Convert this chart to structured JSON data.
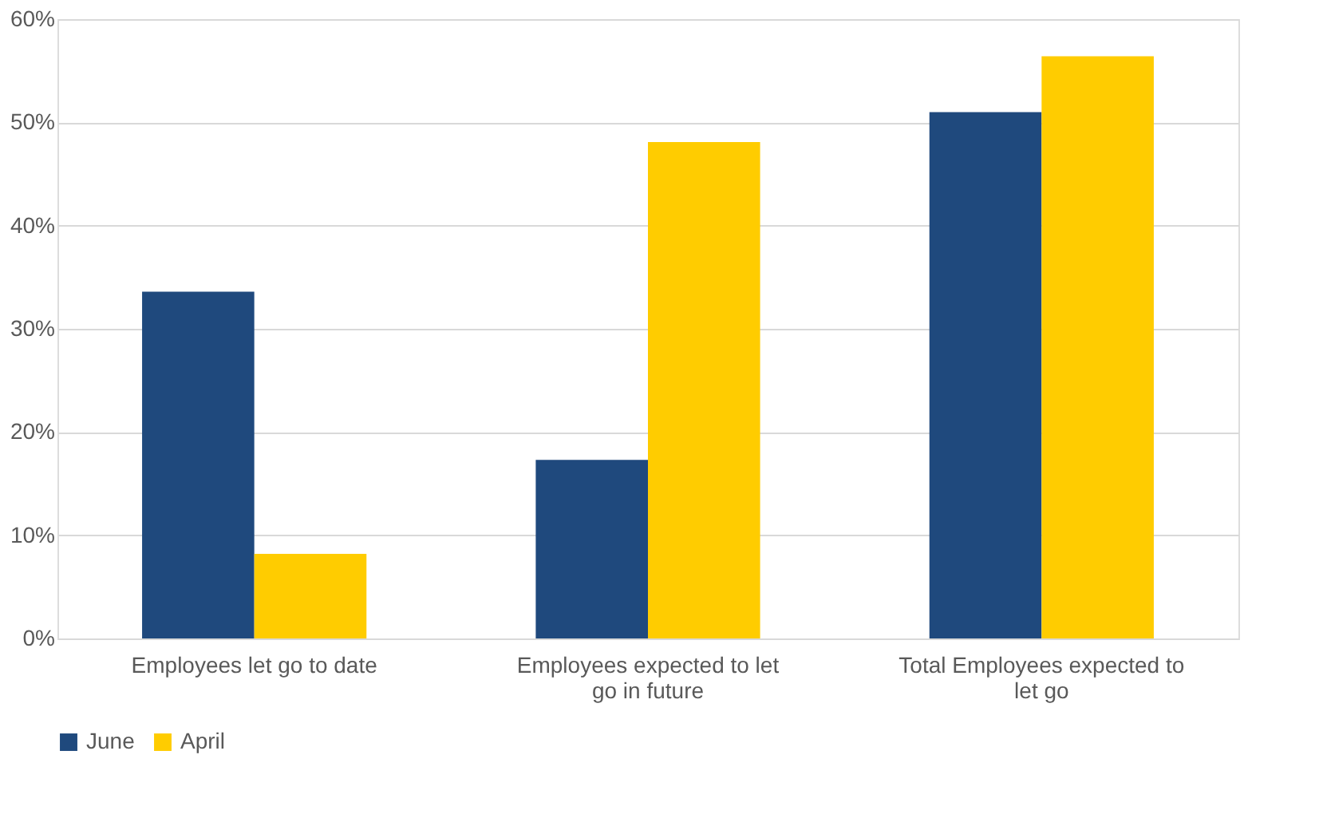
{
  "chart_data": {
    "type": "bar",
    "categories": [
      "Employees let go to date",
      "Employees expected to let go in future",
      "Total Employees expected to let go"
    ],
    "series": [
      {
        "name": "June",
        "color": "#1f497d",
        "values": [
          33.6,
          17.3,
          51.0
        ]
      },
      {
        "name": "April",
        "color": "#ffcc00",
        "values": [
          8.2,
          48.1,
          56.4
        ]
      }
    ],
    "ylim": [
      0,
      60
    ],
    "yticks": [
      {
        "value": 0,
        "label": "0%"
      },
      {
        "value": 10,
        "label": "10%"
      },
      {
        "value": 20,
        "label": "20%"
      },
      {
        "value": 30,
        "label": "30%"
      },
      {
        "value": 40,
        "label": "40%"
      },
      {
        "value": 50,
        "label": "50%"
      },
      {
        "value": 60,
        "label": "60%"
      }
    ],
    "grid": "y",
    "legend": "bottom"
  }
}
